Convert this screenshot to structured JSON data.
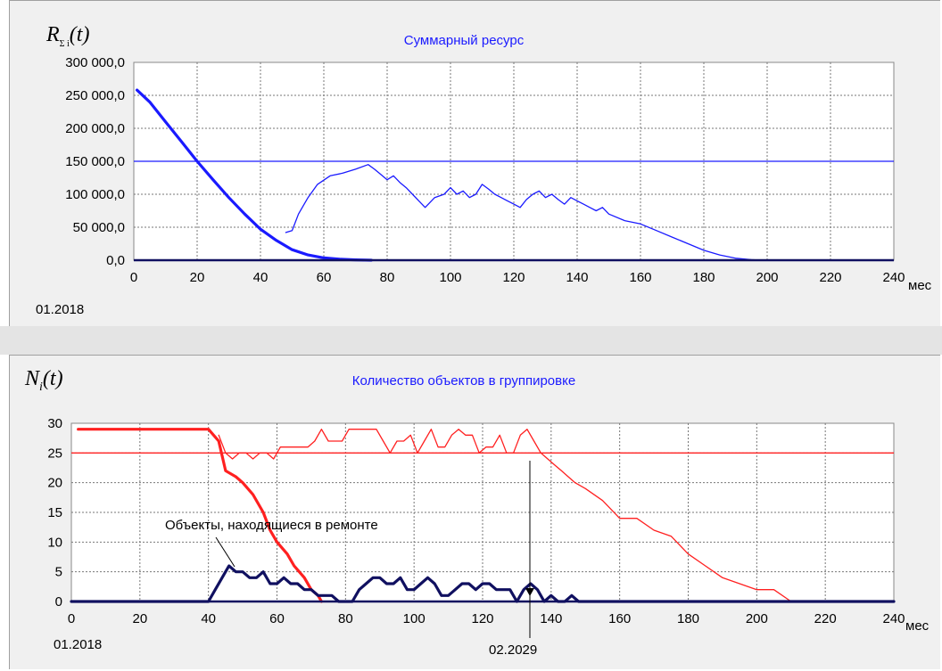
{
  "charts": [
    {
      "title": "Суммарный ресурс",
      "ylabel_main": "R",
      "ylabel_sub": "Σ i",
      "ylabel_arg": "(t)",
      "start_label": "01.2018",
      "x_unit": "мес",
      "x_ticks": [
        "0",
        "20",
        "40",
        "60",
        "80",
        "100",
        "120",
        "140",
        "160",
        "180",
        "200",
        "220",
        "240"
      ],
      "y_ticks": [
        "0,0",
        "50 000,0",
        "100 000,0",
        "150 000,0",
        "200 000,0",
        "250 000,0",
        "300 000,0"
      ]
    },
    {
      "title": "Количество объектов в группировке",
      "ylabel_main": "N",
      "ylabel_sub": "i",
      "ylabel_arg": "(t)",
      "start_label": "01.2018",
      "x_unit": "мес",
      "x_ticks": [
        "0",
        "20",
        "40",
        "60",
        "80",
        "100",
        "120",
        "140",
        "160",
        "180",
        "200",
        "220",
        "240"
      ],
      "y_ticks": [
        "0",
        "5",
        "10",
        "15",
        "20",
        "25",
        "30"
      ],
      "annotation_repair": "Объекты, находящиеся в ремонте",
      "annotation_date": "02.2029"
    }
  ],
  "chart_data": [
    {
      "type": "line",
      "title": "Суммарный ресурс",
      "xlim": [
        0,
        240
      ],
      "ylim": [
        0,
        300000
      ],
      "grid": true,
      "series": [
        {
          "color": "#1a1aff",
          "width": "thick",
          "x": [
            1,
            5,
            10,
            15,
            20,
            25,
            30,
            35,
            40,
            45,
            50,
            55,
            60,
            65,
            70,
            75
          ],
          "y": [
            258000,
            240000,
            210000,
            180000,
            150000,
            122000,
            95000,
            70000,
            47000,
            30000,
            16000,
            8000,
            3500,
            1500,
            500,
            0
          ]
        },
        {
          "color": "#1a1aff",
          "width": "thin",
          "x": [
            48,
            50,
            52,
            55,
            58,
            62,
            66,
            70,
            74,
            76,
            78,
            80,
            82,
            84,
            86,
            88,
            90,
            92,
            95,
            98,
            100,
            102,
            104,
            106,
            108,
            110,
            112,
            114,
            116,
            118,
            120,
            122,
            124,
            126,
            128,
            130,
            132,
            134,
            136,
            138,
            140,
            142,
            144,
            146,
            148,
            150,
            155,
            160,
            165,
            170,
            175,
            180,
            185,
            190,
            195,
            198
          ],
          "y": [
            42000,
            45000,
            70000,
            95000,
            115000,
            128000,
            132000,
            138000,
            145000,
            138000,
            130000,
            122000,
            128000,
            118000,
            110000,
            100000,
            90000,
            80000,
            95000,
            100000,
            110000,
            100000,
            105000,
            95000,
            100000,
            115000,
            108000,
            100000,
            95000,
            90000,
            85000,
            80000,
            92000,
            100000,
            105000,
            95000,
            100000,
            92000,
            85000,
            95000,
            90000,
            85000,
            80000,
            75000,
            80000,
            70000,
            60000,
            55000,
            45000,
            35000,
            25000,
            15000,
            8000,
            3000,
            800,
            0
          ]
        }
      ]
    },
    {
      "type": "line",
      "title": "Количество объектов в группировке",
      "xlim": [
        0,
        240
      ],
      "ylim": [
        0,
        30
      ],
      "grid": true,
      "series": [
        {
          "color": "#ff2020",
          "width": "thick",
          "x": [
            2,
            10,
            20,
            30,
            40,
            43,
            45,
            48,
            50,
            53,
            56,
            58,
            60,
            63,
            65,
            68,
            70,
            72,
            73
          ],
          "y": [
            29,
            29,
            29,
            29,
            29,
            27,
            22,
            21,
            20,
            18,
            15,
            12,
            10,
            8,
            6,
            4,
            2,
            1,
            0
          ]
        },
        {
          "color": "#ff2020",
          "width": "thin",
          "x": [
            43,
            45,
            47,
            49,
            51,
            53,
            55,
            57,
            59,
            61,
            63,
            65,
            67,
            69,
            71,
            73,
            75,
            77,
            79,
            81,
            83,
            85,
            87,
            89,
            91,
            93,
            95,
            97,
            99,
            101,
            103,
            105,
            107,
            109,
            111,
            113,
            115,
            117,
            119,
            121,
            123,
            125,
            127,
            129,
            131,
            133,
            135,
            137,
            139,
            141,
            143,
            145,
            147,
            150,
            155,
            160,
            165,
            170,
            175,
            180,
            185,
            190,
            195,
            200,
            205,
            210
          ],
          "y": [
            28,
            25,
            24,
            25,
            25,
            24,
            25,
            25,
            24,
            26,
            26,
            26,
            26,
            26,
            27,
            29,
            27,
            27,
            27,
            29,
            29,
            29,
            29,
            29,
            27,
            25,
            27,
            27,
            28,
            25,
            27,
            29,
            26,
            26,
            28,
            29,
            28,
            28,
            25,
            26,
            26,
            28,
            25,
            25,
            28,
            29,
            27,
            25,
            24,
            23,
            22,
            21,
            20,
            19,
            17,
            14,
            14,
            12,
            11,
            8,
            6,
            4,
            3,
            2,
            2,
            0
          ]
        },
        {
          "color": "#101060",
          "width": "thick",
          "x": [
            0,
            40,
            42,
            44,
            46,
            48,
            50,
            52,
            54,
            56,
            58,
            60,
            62,
            64,
            66,
            68,
            70,
            72,
            74,
            76,
            78,
            80,
            82,
            84,
            86,
            88,
            90,
            92,
            94,
            96,
            98,
            100,
            102,
            104,
            106,
            108,
            110,
            112,
            114,
            116,
            118,
            120,
            122,
            124,
            126,
            128,
            130,
            132,
            134,
            136,
            138,
            140,
            142,
            144,
            146,
            148,
            240
          ],
          "y": [
            0,
            0,
            2,
            4,
            6,
            5,
            5,
            4,
            4,
            5,
            3,
            3,
            4,
            3,
            3,
            2,
            2,
            1,
            1,
            1,
            0,
            0,
            0,
            2,
            3,
            4,
            4,
            3,
            3,
            4,
            2,
            2,
            3,
            4,
            3,
            1,
            1,
            2,
            3,
            3,
            2,
            3,
            3,
            2,
            2,
            2,
            0,
            2,
            3,
            2,
            0,
            1,
            0,
            0,
            1,
            0,
            0
          ]
        }
      ]
    }
  ]
}
